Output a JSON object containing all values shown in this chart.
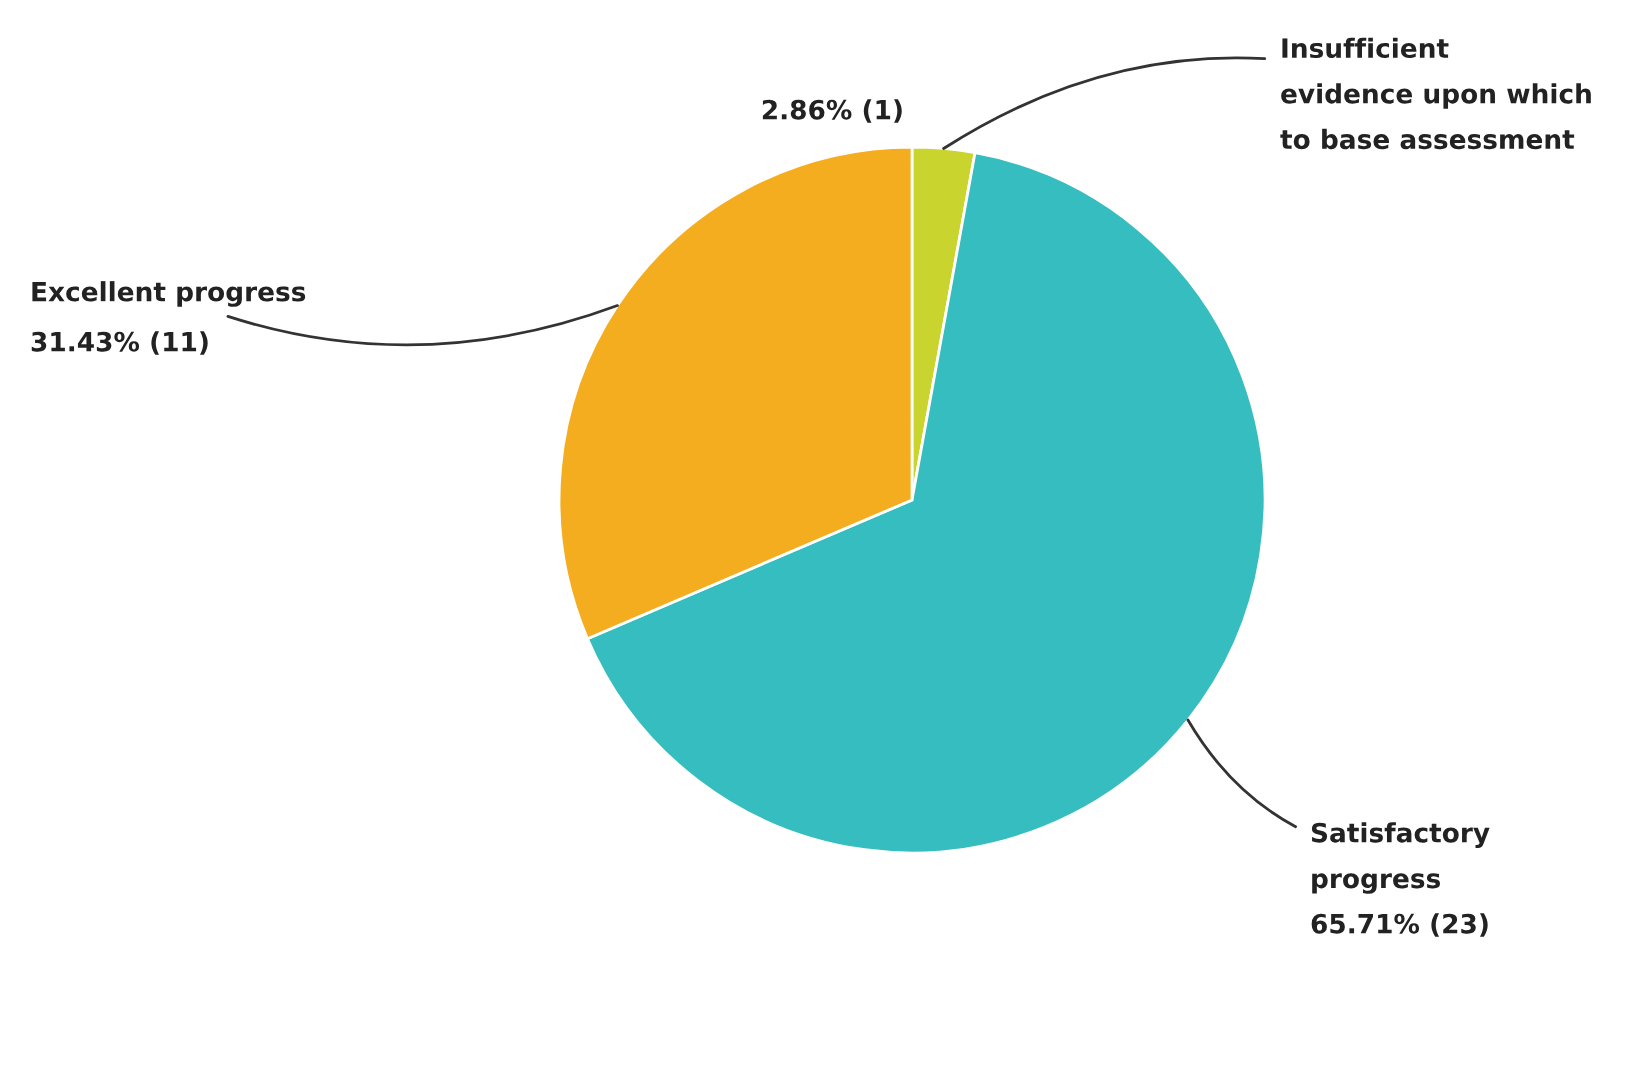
{
  "chart_data": {
    "type": "pie",
    "categories": [
      "Insufficient\nevidence upon which\nto base assessment",
      "Satisfactory\nprogress",
      "Excellent progress"
    ],
    "values": [
      1,
      23,
      11
    ],
    "value_labels": [
      "2.86% (1)",
      "65.71% (23)",
      "31.43% (11)"
    ],
    "colors": [
      "#c9d52e",
      "#36bdbf",
      "#f4ad1e"
    ],
    "legend": false
  }
}
